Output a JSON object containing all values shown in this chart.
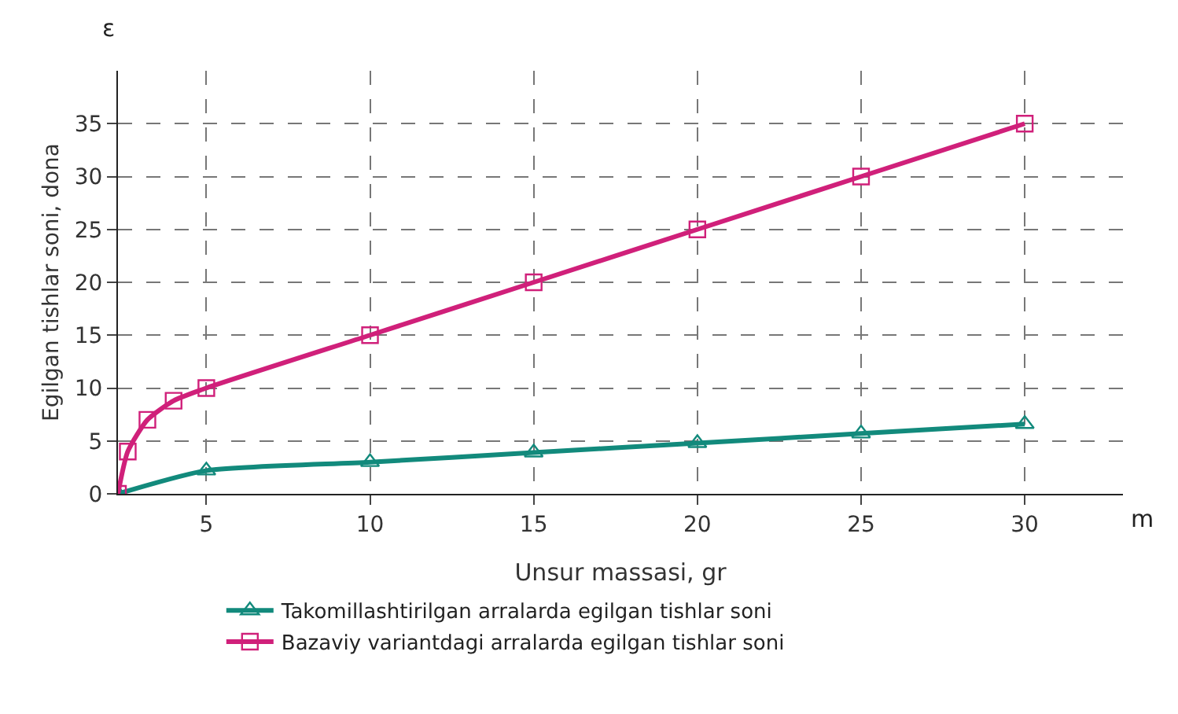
{
  "chart_data": {
    "type": "line",
    "xlabel": "Unsur massasi, gr",
    "ylabel": "Egilgan tishlar soni, dona",
    "annotations": [
      "ε",
      "m"
    ],
    "xlim": [
      2.3,
      33
    ],
    "xticks": [
      5,
      10,
      15,
      20,
      25,
      30
    ],
    "ylim": [
      0,
      40
    ],
    "yticks": [
      0,
      5,
      10,
      15,
      20,
      25,
      30,
      35
    ],
    "series": [
      {
        "name": "Takomillashtirilgan arralarda egilgan tishlar soni",
        "color": "#128a7c",
        "marker": "triangle",
        "x": [
          2.3,
          5,
          10,
          15,
          20,
          25,
          30
        ],
        "values": [
          0,
          2.2,
          3,
          3.9,
          4.8,
          5.7,
          6.6
        ]
      },
      {
        "name": "Bazaviy variantdagi arralarda egilgan tishlar soni",
        "color": "#d0207a",
        "marker": "square",
        "x": [
          2.3,
          2.6,
          3.2,
          4,
          5,
          10,
          15,
          20,
          25,
          30
        ],
        "values": [
          0,
          4,
          7,
          8.8,
          10,
          15,
          20,
          25,
          30,
          35
        ]
      }
    ],
    "grid": true,
    "legend": "bottom",
    "line_style": "solid"
  }
}
